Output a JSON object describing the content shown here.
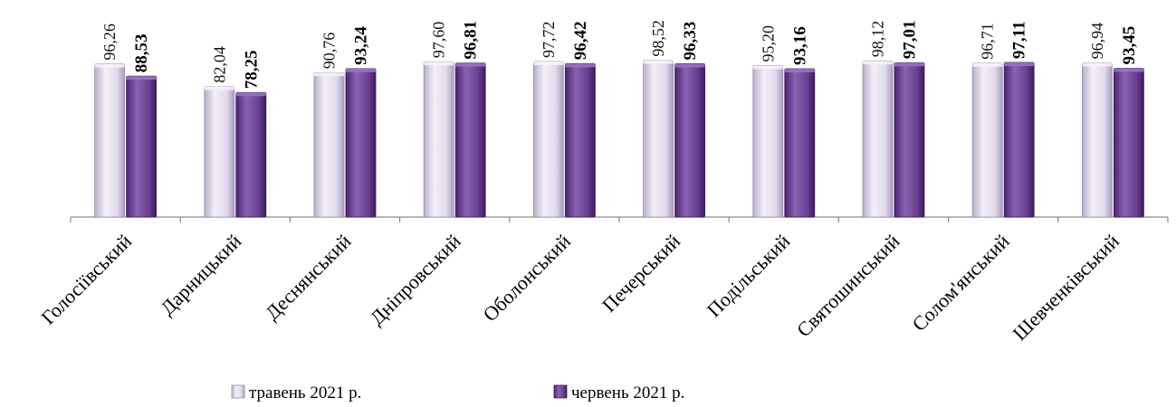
{
  "chart_data": {
    "type": "bar",
    "categories": [
      "Голосіївський",
      "Дарницький",
      "Деснянський",
      "Дніпровський",
      "Оболонський",
      "Печерський",
      "Подільський",
      "Святошинський",
      "Солом'янський",
      "Шевченківський"
    ],
    "series": [
      {
        "name": "травень 2021 р.",
        "values": [
          96.26,
          82.04,
          90.76,
          97.6,
          97.72,
          98.52,
          95.2,
          98.12,
          96.71,
          96.94
        ],
        "labels": [
          "96,26",
          "82,04",
          "90,76",
          "97,60",
          "97,72",
          "98,52",
          "95,20",
          "98,12",
          "96,71",
          "96,94"
        ],
        "color": "#dcd3e8"
      },
      {
        "name": "червень 2021 р.",
        "values": [
          88.53,
          78.25,
          93.24,
          96.81,
          96.42,
          96.33,
          93.16,
          97.01,
          97.11,
          93.45
        ],
        "labels": [
          "88,53",
          "78,25",
          "93,24",
          "96,81",
          "96,42",
          "96,33",
          "93,16",
          "97,01",
          "97,11",
          "93,45"
        ],
        "color": "#6a3f94"
      }
    ],
    "ylim": [
      0,
      100
    ],
    "grid": false,
    "legend_position": "bottom"
  }
}
